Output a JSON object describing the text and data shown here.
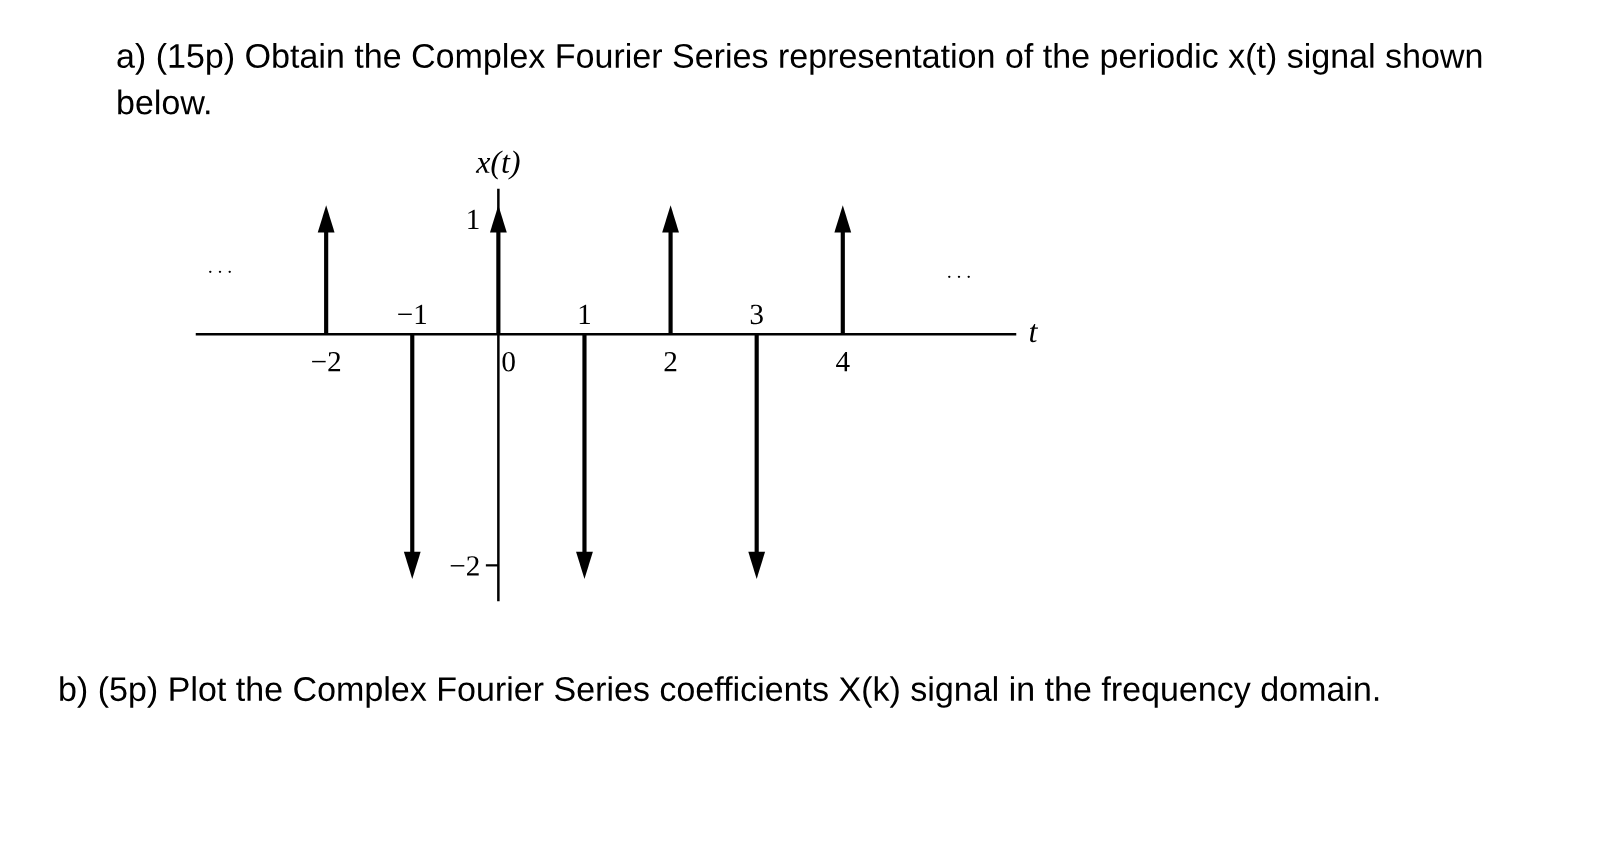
{
  "chart_data": {
    "type": "lollipop",
    "title": "a) (15p) Obtain the Complex Fourier Series representation of the periodic x(t) signal shown below.",
    "xlabel": "t",
    "ylabel": "x(t)",
    "x": [
      -2,
      -1,
      0,
      1,
      2,
      3,
      4
    ],
    "values": [
      1,
      -2,
      1,
      -2,
      1,
      -2,
      1
    ],
    "color": "#000000",
    "marker": "triangle",
    "xlim": [
      -3.5,
      6
    ],
    "ylim": [
      -2.3,
      1.25
    ],
    "xticks": [
      {
        "value": -2,
        "label": "−2"
      },
      0,
      2,
      4
    ],
    "x2lim": [
      -3.5,
      6
    ],
    "x2ticks": [
      {
        "value": -1,
        "label": "−1"
      },
      1,
      3
    ],
    "yticks": [
      1,
      {
        "value": -2,
        "label": "−2"
      }
    ],
    "annotations": [
      ". . .",
      ". . .",
      "b) (5p) Plot the Complex Fourier Series coefficients X(k) signal in the frequency domain."
    ]
  }
}
